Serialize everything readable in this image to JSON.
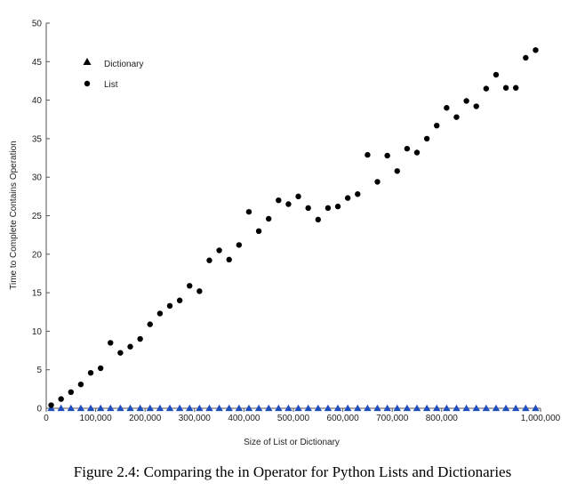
{
  "chart_data": {
    "type": "scatter",
    "title": "",
    "xlabel": "Size of List or Dictionary",
    "ylabel": "Time to Complete Contains Operation",
    "xlim": [
      0,
      1000000
    ],
    "ylim": [
      0,
      50
    ],
    "xticks": [
      0,
      100000,
      200000,
      300000,
      400000,
      500000,
      600000,
      700000,
      800000,
      1000000
    ],
    "xtick_labels": [
      "0",
      "100,000",
      "200,000",
      "300,000",
      "400,000",
      "500,000",
      "600,000",
      "700,000",
      "800,000",
      "1,000,000"
    ],
    "yticks": [
      0,
      5,
      10,
      15,
      20,
      25,
      30,
      35,
      40,
      45,
      50
    ],
    "ytick_labels": [
      "0",
      "5",
      "10",
      "15",
      "20",
      "25",
      "30",
      "35",
      "40",
      "45",
      "50"
    ],
    "legend_position": "top-left",
    "series": [
      {
        "name": "Dictionary",
        "marker": "triangle",
        "color": "#1f4fbf",
        "x": [
          10000,
          30000,
          50000,
          70000,
          90000,
          110000,
          130000,
          150000,
          170000,
          190000,
          210000,
          230000,
          250000,
          270000,
          290000,
          310000,
          330000,
          350000,
          370000,
          390000,
          410000,
          430000,
          450000,
          470000,
          490000,
          510000,
          530000,
          550000,
          570000,
          590000,
          610000,
          630000,
          650000,
          670000,
          690000,
          710000,
          730000,
          750000,
          770000,
          790000,
          810000,
          830000,
          850000,
          870000,
          890000,
          910000,
          930000,
          950000,
          970000,
          990000
        ],
        "y": [
          0,
          0,
          0,
          0,
          0,
          0,
          0,
          0,
          0,
          0,
          0,
          0,
          0,
          0,
          0,
          0,
          0,
          0,
          0,
          0,
          0,
          0,
          0,
          0,
          0,
          0,
          0,
          0,
          0,
          0,
          0,
          0,
          0,
          0,
          0,
          0,
          0,
          0,
          0,
          0,
          0,
          0,
          0,
          0,
          0,
          0,
          0,
          0,
          0,
          0
        ]
      },
      {
        "name": "List",
        "marker": "circle",
        "color": "#000000",
        "x": [
          10000,
          30000,
          50000,
          70000,
          90000,
          110000,
          130000,
          150000,
          170000,
          190000,
          210000,
          230000,
          250000,
          270000,
          290000,
          310000,
          330000,
          350000,
          370000,
          390000,
          410000,
          430000,
          450000,
          470000,
          490000,
          510000,
          530000,
          550000,
          570000,
          590000,
          610000,
          630000,
          650000,
          670000,
          690000,
          710000,
          730000,
          750000,
          770000,
          790000,
          810000,
          830000,
          850000,
          870000,
          890000,
          910000,
          930000,
          950000,
          970000,
          990000
        ],
        "y": [
          0.4,
          1.2,
          2.1,
          3.1,
          4.6,
          5.2,
          8.5,
          7.2,
          8.0,
          9.0,
          10.9,
          12.3,
          13.3,
          14.0,
          15.9,
          15.2,
          19.2,
          20.5,
          19.3,
          21.2,
          25.5,
          23.0,
          24.6,
          27.0,
          26.5,
          27.5,
          26.0,
          24.5,
          26.0,
          26.2,
          27.3,
          27.8,
          32.9,
          29.4,
          32.8,
          30.8,
          33.7,
          33.2,
          35.0,
          36.7,
          39.0,
          37.8,
          39.9,
          39.2,
          41.5,
          43.3,
          41.6,
          41.6,
          45.5,
          46.5
        ]
      }
    ]
  },
  "caption": "Figure 2.4: Comparing the in Operator for Python Lists and Dictionaries"
}
